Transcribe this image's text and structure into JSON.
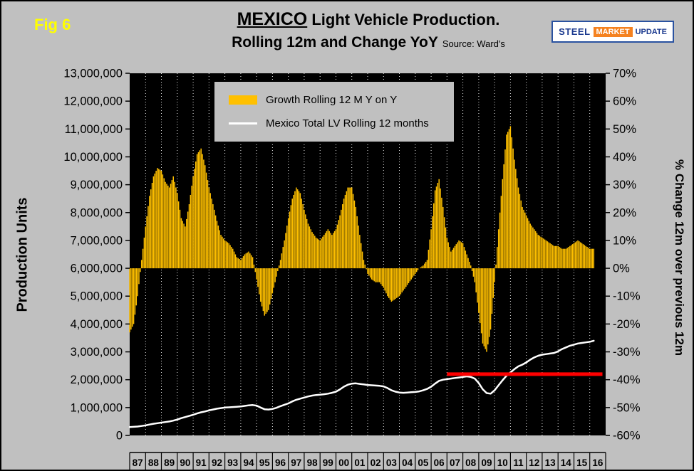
{
  "fig_label": "Fig 6",
  "title": {
    "main_bold": "MEXICO",
    "main_rest": " Light Vehicle Production.",
    "line2": "Rolling 12m and Change YoY",
    "source": "Source: Ward's"
  },
  "logo": {
    "word1": "STEEL",
    "word2": "MARKET",
    "word3": "UPDATE"
  },
  "axes": {
    "left_title": "Production Units",
    "right_title": "% Change 12m over previous 12m",
    "left_ticks": [
      "13,000,000",
      "12,000,000",
      "11,000,000",
      "10,000,000",
      "9,000,000",
      "8,000,000",
      "7,000,000",
      "6,000,000",
      "5,000,000",
      "4,000,000",
      "3,000,000",
      "2,000,000",
      "1,000,000",
      "0"
    ],
    "right_ticks": [
      "70%",
      "60%",
      "50%",
      "40%",
      "30%",
      "20%",
      "10%",
      "0%",
      "-10%",
      "-20%",
      "-30%",
      "-40%",
      "-50%",
      "-60%"
    ],
    "x_ticks": [
      "87",
      "88",
      "89",
      "90",
      "91",
      "92",
      "93",
      "94",
      "95",
      "96",
      "97",
      "98",
      "99",
      "00",
      "01",
      "02",
      "03",
      "04",
      "05",
      "06",
      "07",
      "08",
      "09",
      "10",
      "11",
      "12",
      "13",
      "14",
      "15",
      "16"
    ]
  },
  "legend": {
    "items": [
      {
        "label": "Growth Rolling 12 M Y on Y",
        "swatch": "bar",
        "color": "#FFC000"
      },
      {
        "label": "Mexico Total LV Rolling 12 months",
        "swatch": "line",
        "color": "#FFFFFF"
      }
    ]
  },
  "colors": {
    "page_bg": "#C0C0C0",
    "plot_bg": "#000000",
    "bar": "#FFC000",
    "line": "#FFFFFF",
    "ref_line": "#FF0000",
    "fig_label": "#FFFF00",
    "gridline": "#FFFFFF"
  },
  "chart_data": {
    "type": "combo",
    "title": "MEXICO Light Vehicle Production. Rolling 12m and Change YoY",
    "source": "Ward's",
    "x_range": [
      1987,
      2017
    ],
    "grid": "vertical-dotted",
    "legend_position": "top-center-inside",
    "left_axis": {
      "label": "Production Units",
      "min": 0,
      "max": 13000000,
      "tick_step": 1000000
    },
    "right_axis": {
      "label": "% Change 12m over previous 12m",
      "min": -60,
      "max": 70,
      "tick_step": 10
    },
    "series": [
      {
        "name": "Growth Rolling 12 M Y on Y",
        "type": "bar",
        "axis": "right",
        "unit": "percent",
        "color": "#FFC000",
        "x_start": 1987.0,
        "x_step": 0.25,
        "values": [
          -23,
          -20,
          -10,
          3,
          15,
          26,
          33,
          36,
          35,
          31,
          29,
          33,
          27,
          18,
          15,
          23,
          33,
          41,
          43,
          37,
          29,
          23,
          17,
          12,
          10,
          9,
          7,
          4,
          3,
          5,
          6,
          4,
          -4,
          -12,
          -17,
          -15,
          -9,
          -3,
          3,
          10,
          18,
          25,
          29,
          27,
          21,
          16,
          13,
          11,
          10,
          12,
          14,
          12,
          14,
          19,
          25,
          29,
          29,
          22,
          12,
          3,
          -2,
          -4,
          -5,
          -5,
          -7,
          -10,
          -12,
          -11,
          -10,
          -8,
          -6,
          -4,
          -2,
          0,
          1,
          3,
          14,
          28,
          32,
          22,
          11,
          6,
          8,
          10,
          9,
          5,
          1,
          -5,
          -16,
          -27,
          -30,
          -22,
          -5,
          14,
          32,
          48,
          51,
          39,
          29,
          22,
          19,
          16,
          14,
          12,
          11,
          10,
          9,
          8,
          8,
          7,
          7,
          8,
          9,
          10,
          9,
          8,
          7,
          7
        ]
      },
      {
        "name": "Mexico Total LV Rolling 12 months",
        "type": "line",
        "axis": "left",
        "unit": "units",
        "color": "#FFFFFF",
        "x_start": 1987.0,
        "x_step": 0.25,
        "values": [
          300000,
          310000,
          320000,
          340000,
          360000,
          390000,
          420000,
          440000,
          460000,
          480000,
          500000,
          530000,
          570000,
          620000,
          660000,
          700000,
          740000,
          790000,
          830000,
          860000,
          900000,
          930000,
          960000,
          980000,
          1000000,
          1010000,
          1020000,
          1030000,
          1040000,
          1060000,
          1080000,
          1090000,
          1070000,
          1000000,
          940000,
          930000,
          950000,
          990000,
          1050000,
          1100000,
          1150000,
          1220000,
          1280000,
          1320000,
          1360000,
          1400000,
          1430000,
          1450000,
          1460000,
          1480000,
          1500000,
          1530000,
          1570000,
          1650000,
          1750000,
          1820000,
          1860000,
          1870000,
          1850000,
          1830000,
          1810000,
          1800000,
          1790000,
          1780000,
          1760000,
          1700000,
          1620000,
          1570000,
          1540000,
          1530000,
          1540000,
          1550000,
          1560000,
          1580000,
          1620000,
          1670000,
          1750000,
          1860000,
          1960000,
          2000000,
          2020000,
          2040000,
          2060000,
          2080000,
          2100000,
          2120000,
          2100000,
          2040000,
          1880000,
          1660000,
          1520000,
          1500000,
          1620000,
          1800000,
          1980000,
          2140000,
          2260000,
          2380000,
          2480000,
          2540000,
          2620000,
          2720000,
          2800000,
          2860000,
          2900000,
          2920000,
          2940000,
          2960000,
          3020000,
          3100000,
          3160000,
          3220000,
          3260000,
          3300000,
          3320000,
          3340000,
          3360000,
          3400000
        ]
      },
      {
        "name": "reference-level",
        "type": "hline",
        "axis": "left",
        "unit": "units",
        "color": "#FF0000",
        "value": 2200000,
        "x_from": 2007.0,
        "x_to": 2016.8
      }
    ]
  }
}
